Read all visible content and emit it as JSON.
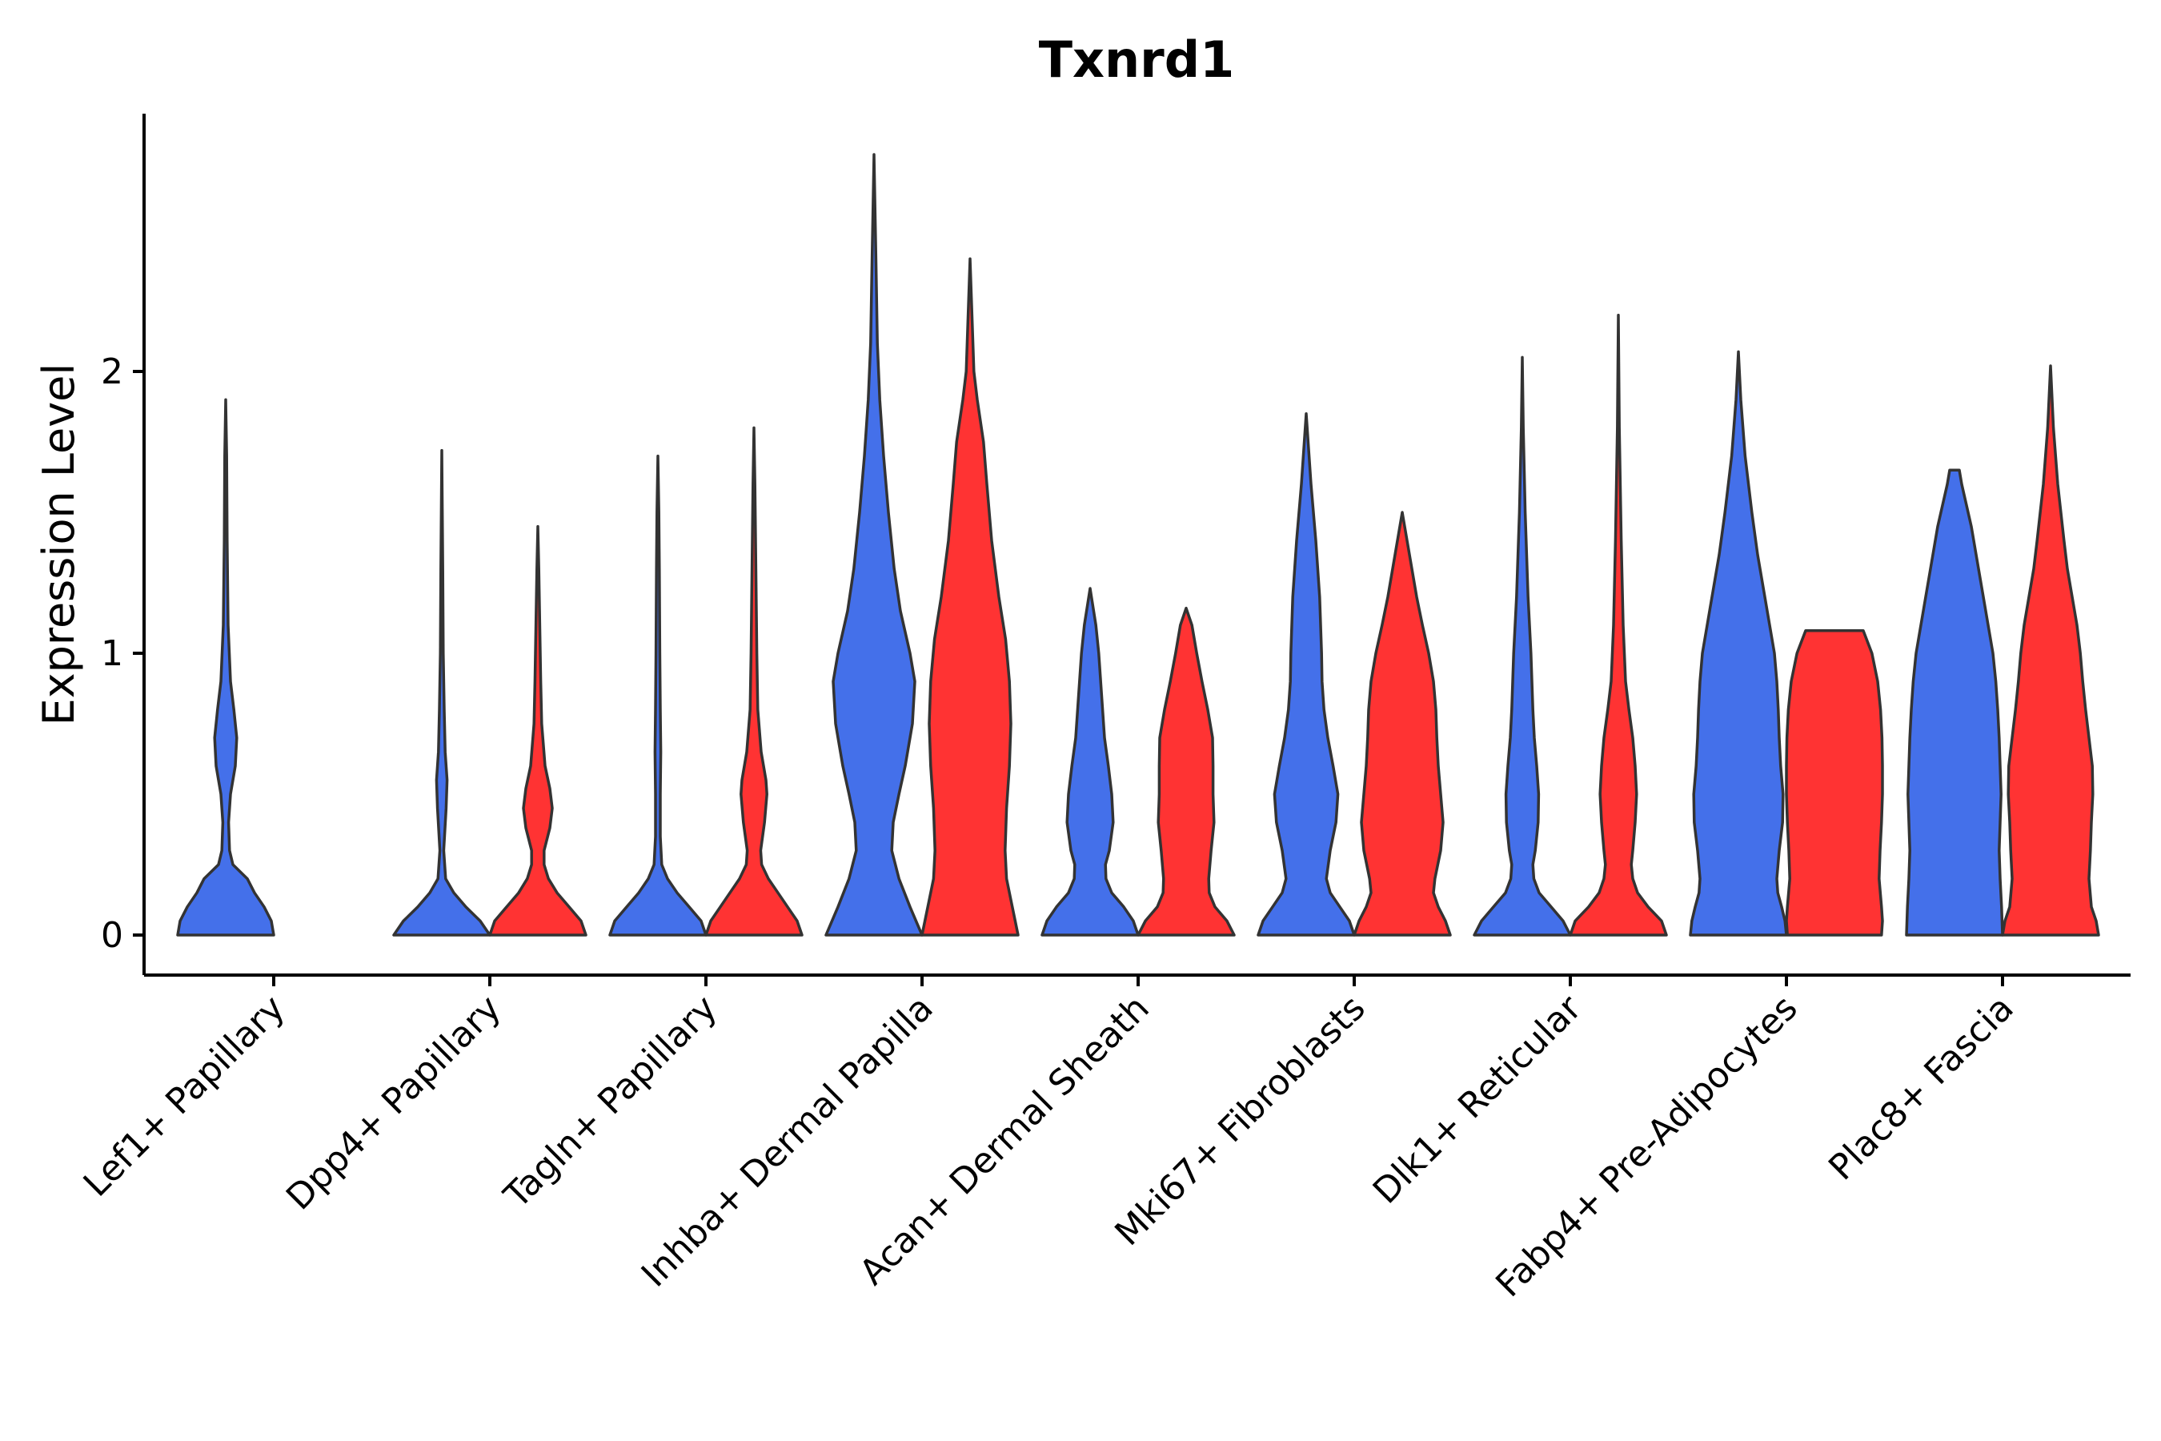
{
  "chart_data": {
    "type": "violin",
    "title": "Txnrd1",
    "xlabel": "",
    "ylabel": "Expression Level",
    "ylim": [
      -0.14,
      2.95
    ],
    "yticks": [
      0,
      1,
      2
    ],
    "grid": false,
    "legend": "none",
    "split_colors": [
      "#4470EA",
      "#FF3333"
    ],
    "categories": [
      "Lef1+ Papillary",
      "Dpp4+ Papillary",
      "Tagln+ Papillary",
      "Inhba+ Dermal Papilla",
      "Acan+ Dermal Sheath",
      "Mki67+ Fibroblasts",
      "Dlk1+ Reticular",
      "Fabp4+ Pre-Adipocytes",
      "Plac8+ Fascia"
    ],
    "violins": [
      {
        "category": "Lef1+ Papillary",
        "group": 1,
        "max": 1.9,
        "profile": [
          [
            0,
            1.0
          ],
          [
            0.05,
            0.95
          ],
          [
            0.1,
            0.8
          ],
          [
            0.15,
            0.6
          ],
          [
            0.2,
            0.45
          ],
          [
            0.25,
            0.15
          ],
          [
            0.3,
            0.08
          ],
          [
            0.4,
            0.06
          ],
          [
            0.5,
            0.1
          ],
          [
            0.6,
            0.2
          ],
          [
            0.7,
            0.23
          ],
          [
            0.8,
            0.17
          ],
          [
            0.9,
            0.1
          ],
          [
            1.1,
            0.05
          ],
          [
            1.4,
            0.03
          ],
          [
            1.7,
            0.02
          ],
          [
            1.9,
            0.0
          ]
        ]
      },
      {
        "category": "Dpp4+ Papillary",
        "group": 1,
        "max": 1.72,
        "profile": [
          [
            0,
            1.0
          ],
          [
            0.05,
            0.8
          ],
          [
            0.1,
            0.5
          ],
          [
            0.15,
            0.25
          ],
          [
            0.2,
            0.08
          ],
          [
            0.3,
            0.04
          ],
          [
            0.45,
            0.09
          ],
          [
            0.55,
            0.11
          ],
          [
            0.65,
            0.07
          ],
          [
            0.8,
            0.05
          ],
          [
            1.0,
            0.03
          ],
          [
            1.3,
            0.02
          ],
          [
            1.72,
            0.0
          ]
        ]
      },
      {
        "category": "Dpp4+ Papillary",
        "group": 2,
        "max": 1.45,
        "profile": [
          [
            0,
            1.0
          ],
          [
            0.05,
            0.9
          ],
          [
            0.1,
            0.65
          ],
          [
            0.15,
            0.4
          ],
          [
            0.2,
            0.22
          ],
          [
            0.25,
            0.13
          ],
          [
            0.3,
            0.13
          ],
          [
            0.38,
            0.25
          ],
          [
            0.45,
            0.3
          ],
          [
            0.52,
            0.25
          ],
          [
            0.6,
            0.15
          ],
          [
            0.75,
            0.08
          ],
          [
            0.9,
            0.06
          ],
          [
            1.1,
            0.04
          ],
          [
            1.3,
            0.02
          ],
          [
            1.45,
            0.0
          ]
        ]
      },
      {
        "category": "Tagln+ Papillary",
        "group": 1,
        "max": 1.7,
        "profile": [
          [
            0,
            1.0
          ],
          [
            0.05,
            0.9
          ],
          [
            0.1,
            0.65
          ],
          [
            0.15,
            0.4
          ],
          [
            0.2,
            0.2
          ],
          [
            0.25,
            0.08
          ],
          [
            0.35,
            0.05
          ],
          [
            0.5,
            0.05
          ],
          [
            0.65,
            0.06
          ],
          [
            0.8,
            0.05
          ],
          [
            1.0,
            0.04
          ],
          [
            1.3,
            0.03
          ],
          [
            1.5,
            0.02
          ],
          [
            1.7,
            0.0
          ]
        ]
      },
      {
        "category": "Tagln+ Papillary",
        "group": 2,
        "max": 1.8,
        "profile": [
          [
            0,
            1.0
          ],
          [
            0.05,
            0.9
          ],
          [
            0.1,
            0.7
          ],
          [
            0.15,
            0.5
          ],
          [
            0.2,
            0.3
          ],
          [
            0.25,
            0.16
          ],
          [
            0.3,
            0.14
          ],
          [
            0.4,
            0.22
          ],
          [
            0.5,
            0.27
          ],
          [
            0.55,
            0.25
          ],
          [
            0.65,
            0.15
          ],
          [
            0.8,
            0.08
          ],
          [
            1.0,
            0.06
          ],
          [
            1.3,
            0.04
          ],
          [
            1.6,
            0.02
          ],
          [
            1.8,
            0.0
          ]
        ]
      },
      {
        "category": "Inhba+ Dermal Papilla",
        "group": 1,
        "max": 2.77,
        "profile": [
          [
            0,
            1.0
          ],
          [
            0.1,
            0.75
          ],
          [
            0.2,
            0.52
          ],
          [
            0.3,
            0.37
          ],
          [
            0.4,
            0.4
          ],
          [
            0.5,
            0.52
          ],
          [
            0.6,
            0.65
          ],
          [
            0.75,
            0.8
          ],
          [
            0.9,
            0.85
          ],
          [
            1.0,
            0.75
          ],
          [
            1.15,
            0.55
          ],
          [
            1.3,
            0.42
          ],
          [
            1.5,
            0.3
          ],
          [
            1.7,
            0.2
          ],
          [
            1.9,
            0.12
          ],
          [
            2.1,
            0.07
          ],
          [
            2.4,
            0.04
          ],
          [
            2.77,
            0.0
          ]
        ]
      },
      {
        "category": "Inhba+ Dermal Papilla",
        "group": 2,
        "max": 2.4,
        "profile": [
          [
            0,
            1.0
          ],
          [
            0.1,
            0.88
          ],
          [
            0.2,
            0.76
          ],
          [
            0.3,
            0.73
          ],
          [
            0.45,
            0.76
          ],
          [
            0.6,
            0.82
          ],
          [
            0.75,
            0.85
          ],
          [
            0.9,
            0.82
          ],
          [
            1.05,
            0.74
          ],
          [
            1.2,
            0.6
          ],
          [
            1.4,
            0.45
          ],
          [
            1.6,
            0.35
          ],
          [
            1.75,
            0.28
          ],
          [
            1.9,
            0.15
          ],
          [
            2.0,
            0.08
          ],
          [
            2.2,
            0.04
          ],
          [
            2.4,
            0.0
          ]
        ]
      },
      {
        "category": "Acan+ Dermal Sheath",
        "group": 1,
        "max": 1.23,
        "profile": [
          [
            0,
            1.0
          ],
          [
            0.05,
            0.9
          ],
          [
            0.1,
            0.7
          ],
          [
            0.15,
            0.45
          ],
          [
            0.2,
            0.33
          ],
          [
            0.25,
            0.32
          ],
          [
            0.3,
            0.4
          ],
          [
            0.4,
            0.48
          ],
          [
            0.5,
            0.45
          ],
          [
            0.6,
            0.38
          ],
          [
            0.7,
            0.3
          ],
          [
            0.85,
            0.24
          ],
          [
            1.0,
            0.18
          ],
          [
            1.1,
            0.12
          ],
          [
            1.23,
            0.0
          ]
        ]
      },
      {
        "category": "Acan+ Dermal Sheath",
        "group": 2,
        "max": 1.16,
        "profile": [
          [
            0,
            1.0
          ],
          [
            0.05,
            0.85
          ],
          [
            0.1,
            0.6
          ],
          [
            0.15,
            0.48
          ],
          [
            0.2,
            0.47
          ],
          [
            0.3,
            0.52
          ],
          [
            0.4,
            0.58
          ],
          [
            0.5,
            0.56
          ],
          [
            0.6,
            0.56
          ],
          [
            0.7,
            0.55
          ],
          [
            0.8,
            0.45
          ],
          [
            0.9,
            0.33
          ],
          [
            1.0,
            0.22
          ],
          [
            1.1,
            0.12
          ],
          [
            1.16,
            0.0
          ]
        ]
      },
      {
        "category": "Mki67+ Fibroblasts",
        "group": 1,
        "max": 1.85,
        "profile": [
          [
            0,
            1.0
          ],
          [
            0.05,
            0.9
          ],
          [
            0.1,
            0.7
          ],
          [
            0.15,
            0.5
          ],
          [
            0.2,
            0.42
          ],
          [
            0.3,
            0.5
          ],
          [
            0.4,
            0.62
          ],
          [
            0.5,
            0.66
          ],
          [
            0.6,
            0.56
          ],
          [
            0.7,
            0.45
          ],
          [
            0.8,
            0.37
          ],
          [
            0.9,
            0.33
          ],
          [
            1.0,
            0.32
          ],
          [
            1.2,
            0.28
          ],
          [
            1.4,
            0.2
          ],
          [
            1.6,
            0.1
          ],
          [
            1.85,
            0.0
          ]
        ]
      },
      {
        "category": "Mki67+ Fibroblasts",
        "group": 2,
        "max": 1.5,
        "profile": [
          [
            0,
            1.0
          ],
          [
            0.05,
            0.9
          ],
          [
            0.1,
            0.75
          ],
          [
            0.15,
            0.65
          ],
          [
            0.2,
            0.68
          ],
          [
            0.3,
            0.8
          ],
          [
            0.4,
            0.85
          ],
          [
            0.5,
            0.8
          ],
          [
            0.6,
            0.75
          ],
          [
            0.7,
            0.72
          ],
          [
            0.8,
            0.7
          ],
          [
            0.9,
            0.65
          ],
          [
            1.0,
            0.55
          ],
          [
            1.1,
            0.42
          ],
          [
            1.2,
            0.3
          ],
          [
            1.35,
            0.15
          ],
          [
            1.5,
            0.0
          ]
        ]
      },
      {
        "category": "Dlk1+ Reticular",
        "group": 1,
        "max": 2.05,
        "profile": [
          [
            0,
            1.0
          ],
          [
            0.05,
            0.85
          ],
          [
            0.1,
            0.6
          ],
          [
            0.15,
            0.35
          ],
          [
            0.2,
            0.24
          ],
          [
            0.25,
            0.22
          ],
          [
            0.3,
            0.27
          ],
          [
            0.4,
            0.33
          ],
          [
            0.5,
            0.34
          ],
          [
            0.6,
            0.3
          ],
          [
            0.7,
            0.25
          ],
          [
            0.8,
            0.22
          ],
          [
            1.0,
            0.18
          ],
          [
            1.2,
            0.12
          ],
          [
            1.5,
            0.06
          ],
          [
            1.8,
            0.02
          ],
          [
            2.05,
            0.0
          ]
        ]
      },
      {
        "category": "Dlk1+ Reticular",
        "group": 2,
        "max": 2.2,
        "profile": [
          [
            0,
            1.0
          ],
          [
            0.05,
            0.9
          ],
          [
            0.1,
            0.62
          ],
          [
            0.15,
            0.4
          ],
          [
            0.2,
            0.3
          ],
          [
            0.25,
            0.27
          ],
          [
            0.3,
            0.3
          ],
          [
            0.4,
            0.35
          ],
          [
            0.5,
            0.38
          ],
          [
            0.6,
            0.35
          ],
          [
            0.7,
            0.3
          ],
          [
            0.8,
            0.22
          ],
          [
            0.9,
            0.15
          ],
          [
            1.1,
            0.1
          ],
          [
            1.4,
            0.06
          ],
          [
            1.8,
            0.02
          ],
          [
            2.2,
            0.0
          ]
        ]
      },
      {
        "category": "Fabp4+ Pre-Adipocytes",
        "group": 1,
        "max": 2.07,
        "profile": [
          [
            0,
            1.0
          ],
          [
            0.05,
            0.97
          ],
          [
            0.1,
            0.9
          ],
          [
            0.15,
            0.82
          ],
          [
            0.2,
            0.8
          ],
          [
            0.3,
            0.85
          ],
          [
            0.4,
            0.92
          ],
          [
            0.5,
            0.93
          ],
          [
            0.6,
            0.88
          ],
          [
            0.7,
            0.85
          ],
          [
            0.8,
            0.83
          ],
          [
            0.9,
            0.8
          ],
          [
            1.0,
            0.75
          ],
          [
            1.1,
            0.65
          ],
          [
            1.2,
            0.55
          ],
          [
            1.35,
            0.4
          ],
          [
            1.5,
            0.28
          ],
          [
            1.7,
            0.14
          ],
          [
            1.9,
            0.05
          ],
          [
            2.07,
            0.0
          ]
        ]
      },
      {
        "category": "Fabp4+ Pre-Adipocytes",
        "group": 2,
        "max": 1.08,
        "profile": [
          [
            0,
            0.98
          ],
          [
            0.05,
            1.0
          ],
          [
            0.1,
            0.98
          ],
          [
            0.2,
            0.93
          ],
          [
            0.3,
            0.95
          ],
          [
            0.4,
            0.98
          ],
          [
            0.5,
            1.0
          ],
          [
            0.6,
            1.0
          ],
          [
            0.7,
            0.99
          ],
          [
            0.8,
            0.96
          ],
          [
            0.9,
            0.9
          ],
          [
            1.0,
            0.78
          ],
          [
            1.08,
            0.6
          ]
        ]
      },
      {
        "category": "Plac8+ Fascia",
        "group": 1,
        "max": 1.65,
        "profile": [
          [
            0,
            1.0
          ],
          [
            0.1,
            0.98
          ],
          [
            0.2,
            0.95
          ],
          [
            0.3,
            0.93
          ],
          [
            0.4,
            0.95
          ],
          [
            0.5,
            0.97
          ],
          [
            0.6,
            0.95
          ],
          [
            0.7,
            0.93
          ],
          [
            0.8,
            0.9
          ],
          [
            0.9,
            0.86
          ],
          [
            1.0,
            0.8
          ],
          [
            1.1,
            0.7
          ],
          [
            1.2,
            0.6
          ],
          [
            1.3,
            0.5
          ],
          [
            1.45,
            0.35
          ],
          [
            1.6,
            0.15
          ],
          [
            1.65,
            0.1
          ]
        ]
      },
      {
        "category": "Plac8+ Fascia",
        "group": 2,
        "max": 2.02,
        "profile": [
          [
            0,
            1.0
          ],
          [
            0.05,
            0.95
          ],
          [
            0.1,
            0.85
          ],
          [
            0.2,
            0.8
          ],
          [
            0.3,
            0.83
          ],
          [
            0.4,
            0.85
          ],
          [
            0.5,
            0.88
          ],
          [
            0.6,
            0.87
          ],
          [
            0.7,
            0.8
          ],
          [
            0.8,
            0.73
          ],
          [
            0.9,
            0.67
          ],
          [
            1.0,
            0.62
          ],
          [
            1.1,
            0.55
          ],
          [
            1.2,
            0.45
          ],
          [
            1.3,
            0.35
          ],
          [
            1.4,
            0.28
          ],
          [
            1.6,
            0.15
          ],
          [
            1.8,
            0.06
          ],
          [
            2.02,
            0.0
          ]
        ]
      }
    ]
  }
}
